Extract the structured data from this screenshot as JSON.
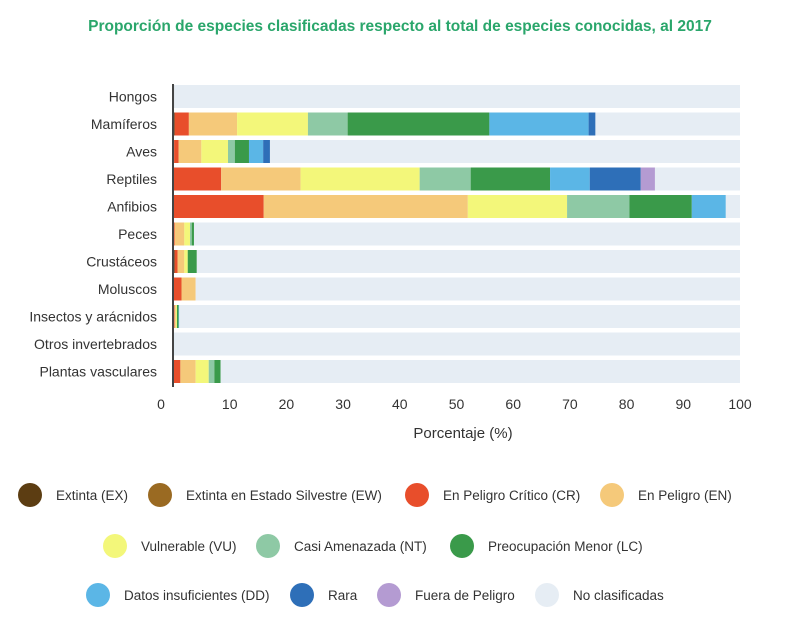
{
  "title": "Proporción de especies clasificadas respecto al total de especies conocidas, al 2017",
  "chart_data": {
    "type": "bar",
    "orientation": "horizontal",
    "stacked": true,
    "title": "Proporción de especies clasificadas respecto al total de especies conocidas, al 2017",
    "xlabel": "Porcentaje (%)",
    "ylabel": "",
    "xlim": [
      0,
      100
    ],
    "xticks": [
      0,
      10,
      20,
      30,
      40,
      50,
      60,
      70,
      80,
      90,
      100
    ],
    "grid": false,
    "legend_position": "bottom",
    "categories": [
      "Hongos",
      "Mamíferos",
      "Aves",
      "Reptiles",
      "Anfibios",
      "Peces",
      "Crustáceos",
      "Moluscos",
      "Insectos y arácnidos",
      "Otros invertebrados",
      "Plantas vasculares"
    ],
    "series": [
      {
        "name": "Extinta (EX)",
        "color": "#5c3d12",
        "values": [
          0.2,
          0.3,
          0.2,
          0,
          0,
          0,
          0.3,
          0,
          0.2,
          0,
          0
        ]
      },
      {
        "name": "Extinta en Estado Silvestre (EW)",
        "color": "#9a6a22",
        "values": [
          0,
          0,
          0,
          0,
          0,
          0,
          0,
          0,
          0,
          0,
          0
        ]
      },
      {
        "name": "En Peligro Crítico (CR)",
        "color": "#e84e2b",
        "values": [
          0,
          2.5,
          0.8,
          8.5,
          16,
          0.3,
          0.5,
          1.5,
          0.1,
          0,
          1.3
        ]
      },
      {
        "name": "En Peligro (EN)",
        "color": "#f5c97a",
        "values": [
          0,
          8.5,
          4,
          14,
          36,
          1.7,
          1.2,
          2.5,
          0.2,
          0,
          2.7
        ]
      },
      {
        "name": "Vulnerable (VU)",
        "color": "#f3f77a",
        "values": [
          0,
          12.5,
          4.7,
          21,
          17.5,
          1,
          0.6,
          0,
          0.2,
          0,
          2.3
        ]
      },
      {
        "name": "Casi Amenazada (NT)",
        "color": "#8ec9a5",
        "values": [
          0,
          7,
          1.2,
          9,
          11,
          0.3,
          0,
          0,
          0,
          0,
          1
        ]
      },
      {
        "name": "Preocupación Menor (LC)",
        "color": "#3a9a4a",
        "values": [
          0,
          25,
          2.5,
          14,
          11,
          0.4,
          1.6,
          0,
          0.3,
          0,
          1.1
        ]
      },
      {
        "name": "Datos insuficientes (DD)",
        "color": "#5bb6e6",
        "values": [
          0,
          17.5,
          2.5,
          7,
          6,
          0,
          0,
          0,
          0.1,
          0.2,
          0
        ]
      },
      {
        "name": "Rara",
        "color": "#2e6fb8",
        "values": [
          0,
          1.2,
          1.2,
          9,
          0,
          0,
          0,
          0,
          0,
          0,
          0
        ]
      },
      {
        "name": "Fuera de Peligro",
        "color": "#b49bd2",
        "values": [
          0,
          0,
          0,
          2.5,
          0,
          0,
          0,
          0,
          0,
          0,
          0
        ]
      },
      {
        "name": "No clasificadas",
        "color": "#e6edf4",
        "values": [
          99.8,
          25.5,
          82.9,
          15,
          2.5,
          96.3,
          95.8,
          96,
          98.9,
          99.8,
          91.6
        ]
      }
    ]
  }
}
